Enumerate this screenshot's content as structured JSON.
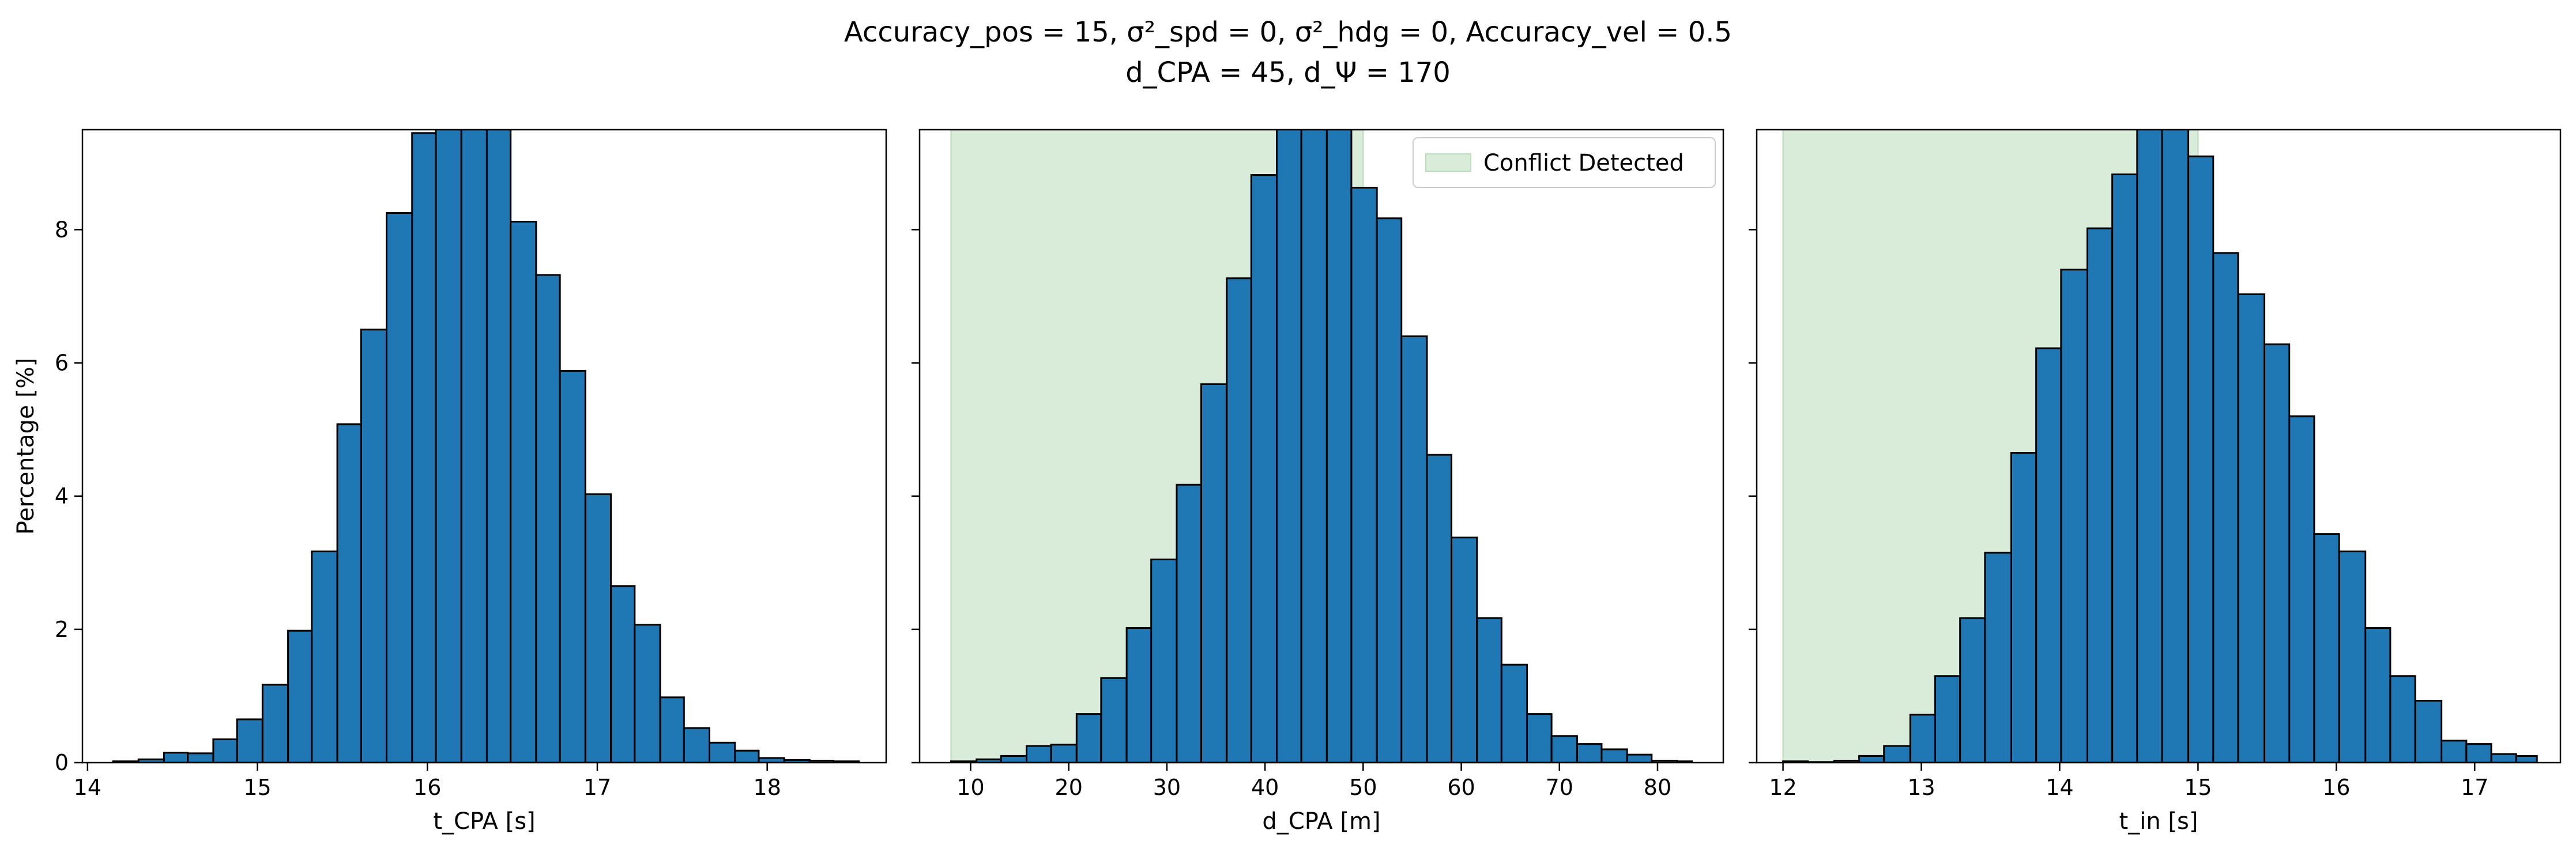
{
  "figure": {
    "title_line1": "Accuracy_pos = 15, σ²_spd = 0, σ²_hdg = 0, Accuracy_vel = 0.5",
    "title_line2": "d_CPA = 45, d_Ψ = 170"
  },
  "chart_data": [
    {
      "type": "bar",
      "subtype": "histogram",
      "xlabel": "t_CPA [s]",
      "ylabel": "Percentage [%]",
      "xlim": [
        13.97,
        18.7
      ],
      "ylim": [
        0,
        9.5
      ],
      "xticks": [
        14,
        15,
        16,
        17,
        18
      ],
      "yticks": [
        0,
        2,
        4,
        6,
        8
      ],
      "bar_color": "#1f77b4",
      "edge_color": "#000000",
      "bins": [
        {
          "x0": 14.15,
          "x1": 14.3,
          "value": 0.02
        },
        {
          "x0": 14.3,
          "x1": 14.45,
          "value": 0.05
        },
        {
          "x0": 14.45,
          "x1": 14.59,
          "value": 0.15
        },
        {
          "x0": 14.59,
          "x1": 14.74,
          "value": 0.14
        },
        {
          "x0": 14.74,
          "x1": 14.88,
          "value": 0.35
        },
        {
          "x0": 14.88,
          "x1": 15.03,
          "value": 0.65
        },
        {
          "x0": 15.03,
          "x1": 15.18,
          "value": 1.17
        },
        {
          "x0": 15.18,
          "x1": 15.32,
          "value": 1.98
        },
        {
          "x0": 15.32,
          "x1": 15.47,
          "value": 3.17
        },
        {
          "x0": 15.47,
          "x1": 15.61,
          "value": 5.08
        },
        {
          "x0": 15.61,
          "x1": 15.76,
          "value": 6.5
        },
        {
          "x0": 15.76,
          "x1": 15.91,
          "value": 8.25
        },
        {
          "x0": 15.91,
          "x1": 16.05,
          "value": 9.45
        },
        {
          "x0": 16.05,
          "x1": 16.2,
          "value": 10.2
        },
        {
          "x0": 16.2,
          "x1": 16.35,
          "value": 10.4
        },
        {
          "x0": 16.35,
          "x1": 16.49,
          "value": 9.8
        },
        {
          "x0": 16.49,
          "x1": 16.64,
          "value": 8.12
        },
        {
          "x0": 16.64,
          "x1": 16.78,
          "value": 7.32
        },
        {
          "x0": 16.78,
          "x1": 16.93,
          "value": 5.88
        },
        {
          "x0": 16.93,
          "x1": 17.08,
          "value": 4.03
        },
        {
          "x0": 17.08,
          "x1": 17.22,
          "value": 2.65
        },
        {
          "x0": 17.22,
          "x1": 17.37,
          "value": 2.07
        },
        {
          "x0": 17.37,
          "x1": 17.51,
          "value": 0.98
        },
        {
          "x0": 17.51,
          "x1": 17.66,
          "value": 0.52
        },
        {
          "x0": 17.66,
          "x1": 17.81,
          "value": 0.3
        },
        {
          "x0": 17.81,
          "x1": 17.95,
          "value": 0.18
        },
        {
          "x0": 17.95,
          "x1": 18.1,
          "value": 0.07
        },
        {
          "x0": 18.1,
          "x1": 18.25,
          "value": 0.04
        },
        {
          "x0": 18.25,
          "x1": 18.39,
          "value": 0.03
        },
        {
          "x0": 18.39,
          "x1": 18.54,
          "value": 0.02
        }
      ]
    },
    {
      "type": "bar",
      "subtype": "histogram",
      "xlabel": "d_CPA [m]",
      "ylabel": "",
      "xlim": [
        4.8,
        86.7
      ],
      "ylim": [
        0,
        9.5
      ],
      "xticks": [
        10,
        20,
        30,
        40,
        50,
        60,
        70,
        80
      ],
      "yticks": [
        0,
        2,
        4,
        6,
        8
      ],
      "bar_color": "#1f77b4",
      "edge_color": "#000000",
      "shaded_region": {
        "x0": 8.0,
        "x1": 50.0,
        "label": "Conflict Detected",
        "color": "#d9ecd9"
      },
      "legend": {
        "location": "upper right",
        "entries": [
          "Conflict Detected"
        ]
      },
      "bins": [
        {
          "x0": 8.0,
          "x1": 10.6,
          "value": 0.02
        },
        {
          "x0": 10.6,
          "x1": 13.1,
          "value": 0.05
        },
        {
          "x0": 13.1,
          "x1": 15.7,
          "value": 0.1
        },
        {
          "x0": 15.7,
          "x1": 18.2,
          "value": 0.25
        },
        {
          "x0": 18.2,
          "x1": 20.8,
          "value": 0.27
        },
        {
          "x0": 20.8,
          "x1": 23.3,
          "value": 0.73
        },
        {
          "x0": 23.3,
          "x1": 25.9,
          "value": 1.27
        },
        {
          "x0": 25.9,
          "x1": 28.4,
          "value": 2.02
        },
        {
          "x0": 28.4,
          "x1": 31.0,
          "value": 3.05
        },
        {
          "x0": 31.0,
          "x1": 33.5,
          "value": 4.17
        },
        {
          "x0": 33.5,
          "x1": 36.1,
          "value": 5.68
        },
        {
          "x0": 36.1,
          "x1": 38.6,
          "value": 7.27
        },
        {
          "x0": 38.6,
          "x1": 41.2,
          "value": 8.82
        },
        {
          "x0": 41.2,
          "x1": 43.7,
          "value": 9.83
        },
        {
          "x0": 43.7,
          "x1": 46.3,
          "value": 10.5
        },
        {
          "x0": 46.3,
          "x1": 48.8,
          "value": 9.98
        },
        {
          "x0": 48.8,
          "x1": 51.4,
          "value": 8.63
        },
        {
          "x0": 51.4,
          "x1": 53.9,
          "value": 8.17
        },
        {
          "x0": 53.9,
          "x1": 56.5,
          "value": 6.4
        },
        {
          "x0": 56.5,
          "x1": 59.0,
          "value": 4.62
        },
        {
          "x0": 59.0,
          "x1": 61.6,
          "value": 3.38
        },
        {
          "x0": 61.6,
          "x1": 64.1,
          "value": 2.17
        },
        {
          "x0": 64.1,
          "x1": 66.7,
          "value": 1.47
        },
        {
          "x0": 66.7,
          "x1": 69.2,
          "value": 0.73
        },
        {
          "x0": 69.2,
          "x1": 71.8,
          "value": 0.4
        },
        {
          "x0": 71.8,
          "x1": 74.3,
          "value": 0.28
        },
        {
          "x0": 74.3,
          "x1": 76.9,
          "value": 0.2
        },
        {
          "x0": 76.9,
          "x1": 79.4,
          "value": 0.12
        },
        {
          "x0": 79.4,
          "x1": 82.0,
          "value": 0.03
        },
        {
          "x0": 82.0,
          "x1": 83.5,
          "value": 0.02
        }
      ]
    },
    {
      "type": "bar",
      "subtype": "histogram",
      "xlabel": "t_in [s]",
      "ylabel": "",
      "xlim": [
        11.81,
        17.62
      ],
      "ylim": [
        0,
        9.5
      ],
      "xticks": [
        12,
        13,
        14,
        15,
        16,
        17
      ],
      "yticks": [
        0,
        2,
        4,
        6,
        8
      ],
      "bar_color": "#1f77b4",
      "edge_color": "#000000",
      "shaded_region": {
        "x0": 12.0,
        "x1": 15.0,
        "label": "Conflict Detected",
        "color": "#d9ecd9"
      },
      "bins": [
        {
          "x0": 12.0,
          "x1": 12.18,
          "value": 0.02
        },
        {
          "x0": 12.18,
          "x1": 12.37,
          "value": 0.01
        },
        {
          "x0": 12.37,
          "x1": 12.55,
          "value": 0.03
        },
        {
          "x0": 12.55,
          "x1": 12.73,
          "value": 0.1
        },
        {
          "x0": 12.73,
          "x1": 12.92,
          "value": 0.25
        },
        {
          "x0": 12.92,
          "x1": 13.1,
          "value": 0.72
        },
        {
          "x0": 13.1,
          "x1": 13.28,
          "value": 1.3
        },
        {
          "x0": 13.28,
          "x1": 13.46,
          "value": 2.17
        },
        {
          "x0": 13.46,
          "x1": 13.65,
          "value": 3.15
        },
        {
          "x0": 13.65,
          "x1": 13.83,
          "value": 4.65
        },
        {
          "x0": 13.83,
          "x1": 14.01,
          "value": 6.22
        },
        {
          "x0": 14.01,
          "x1": 14.2,
          "value": 7.4
        },
        {
          "x0": 14.2,
          "x1": 14.38,
          "value": 8.02
        },
        {
          "x0": 14.38,
          "x1": 14.56,
          "value": 8.83
        },
        {
          "x0": 14.56,
          "x1": 14.74,
          "value": 10.2
        },
        {
          "x0": 14.74,
          "x1": 14.93,
          "value": 10.5
        },
        {
          "x0": 14.93,
          "x1": 15.11,
          "value": 9.1
        },
        {
          "x0": 15.11,
          "x1": 15.29,
          "value": 7.65
        },
        {
          "x0": 15.29,
          "x1": 15.48,
          "value": 7.03
        },
        {
          "x0": 15.48,
          "x1": 15.66,
          "value": 6.28
        },
        {
          "x0": 15.66,
          "x1": 15.84,
          "value": 5.2
        },
        {
          "x0": 15.84,
          "x1": 16.02,
          "value": 3.43
        },
        {
          "x0": 16.02,
          "x1": 16.21,
          "value": 3.17
        },
        {
          "x0": 16.21,
          "x1": 16.39,
          "value": 2.02
        },
        {
          "x0": 16.39,
          "x1": 16.57,
          "value": 1.3
        },
        {
          "x0": 16.57,
          "x1": 16.76,
          "value": 0.93
        },
        {
          "x0": 16.76,
          "x1": 16.94,
          "value": 0.33
        },
        {
          "x0": 16.94,
          "x1": 17.12,
          "value": 0.28
        },
        {
          "x0": 17.12,
          "x1": 17.3,
          "value": 0.13
        },
        {
          "x0": 17.3,
          "x1": 17.45,
          "value": 0.1
        }
      ]
    }
  ]
}
